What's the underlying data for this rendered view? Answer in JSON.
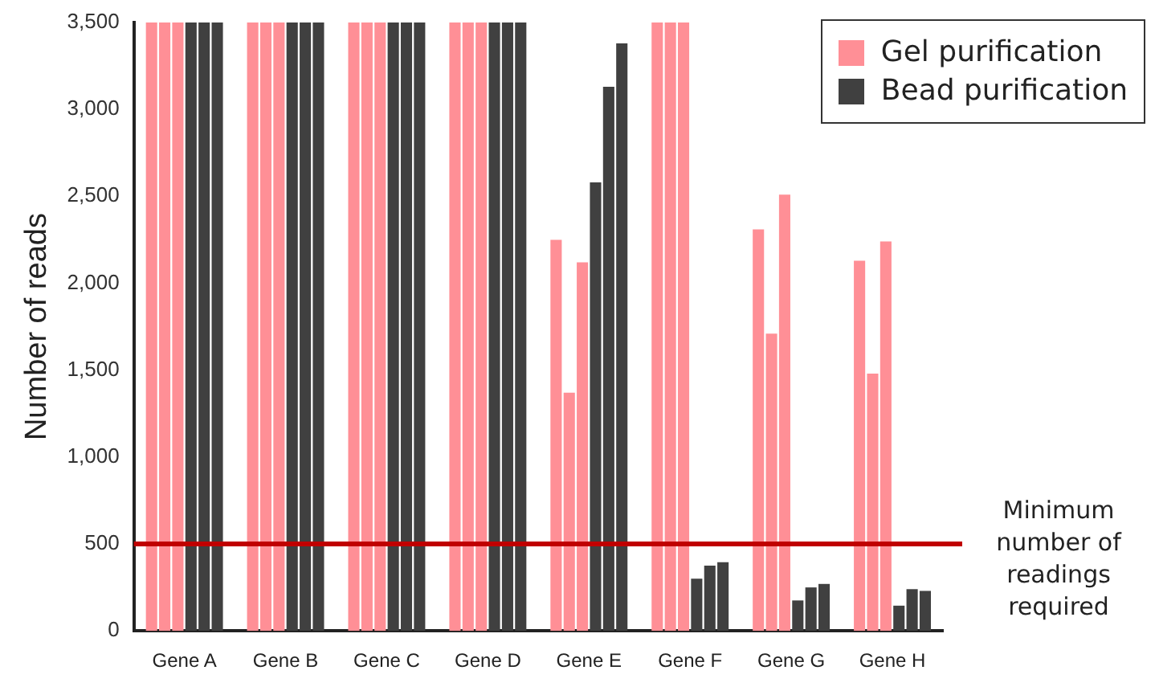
{
  "chart_data": {
    "type": "bar",
    "ylabel": "Number of reads",
    "categories": [
      "Gene A",
      "Gene B",
      "Gene C",
      "Gene D",
      "Gene E",
      "Gene F",
      "Gene G",
      "Gene H"
    ],
    "series": [
      {
        "name": "Gel purification",
        "color": "#ff8f96",
        "values": [
          3500,
          3500,
          3500,
          3500,
          2250,
          3500,
          2310,
          2130
        ]
      },
      {
        "color": "#ff8f96",
        "values": [
          3500,
          3500,
          3500,
          3500,
          1370,
          3500,
          1710,
          1480
        ]
      },
      {
        "color": "#ff8f96",
        "values": [
          3500,
          3500,
          3500,
          3500,
          2120,
          3500,
          2510,
          2240
        ]
      },
      {
        "name": "Bead purification",
        "color": "#404040",
        "values": [
          3500,
          3500,
          3500,
          3500,
          2580,
          300,
          175,
          145
        ]
      },
      {
        "color": "#404040",
        "values": [
          3500,
          3500,
          3500,
          3500,
          3130,
          375,
          250,
          240
        ]
      },
      {
        "color": "#404040",
        "values": [
          3500,
          3500,
          3500,
          3500,
          3380,
          395,
          270,
          230
        ]
      }
    ],
    "ylim": [
      0,
      3500
    ],
    "yticks": [
      0,
      500,
      {
        "value": 1000,
        "label": "1,000"
      },
      {
        "value": 1500,
        "label": "1,500"
      },
      {
        "value": 2000,
        "label": "2,000"
      },
      {
        "value": 2500,
        "label": "2,500"
      },
      {
        "value": 3000,
        "label": "3,000"
      },
      {
        "value": 3500,
        "label": "3,500"
      }
    ],
    "ref_lines": [
      {
        "axis": "y",
        "value": 500,
        "label": "Minimum number of readings required",
        "color": "#c00000"
      }
    ],
    "grid": false,
    "legend": "top right"
  }
}
